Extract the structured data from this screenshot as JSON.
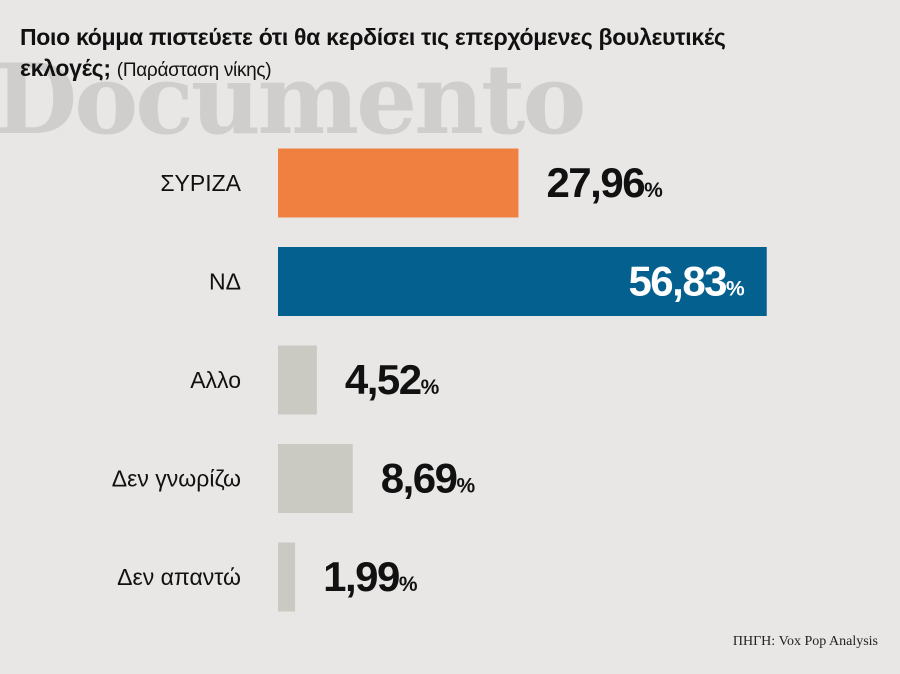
{
  "title": {
    "main": "Ποιο κόμμα πιστεύετε ότι θα κερδίσει τις επερχόμενες βουλευτικές εκλογές;",
    "sub": "(Παράσταση νίκης)"
  },
  "watermark": "Documento",
  "source": "ΠΗΓΗ: Vox Pop Analysis",
  "chart_data": {
    "type": "bar",
    "orientation": "horizontal",
    "categories": [
      "ΣΥΡΙΖΑ",
      "ΝΔ",
      "Αλλο",
      "Δεν γνωρίζω",
      "Δεν απαντώ"
    ],
    "values": [
      27.96,
      56.83,
      4.52,
      8.69,
      1.99
    ],
    "value_labels": [
      "27,96",
      "56,83",
      "4,52",
      "8,69",
      "1,99"
    ],
    "unit": "%",
    "colors": [
      "#f08040",
      "#04618f",
      "#cacac3",
      "#cacac3",
      "#cacac3"
    ],
    "label_inside_bar": [
      false,
      true,
      false,
      false,
      false
    ],
    "grid": false,
    "legend": "none"
  }
}
